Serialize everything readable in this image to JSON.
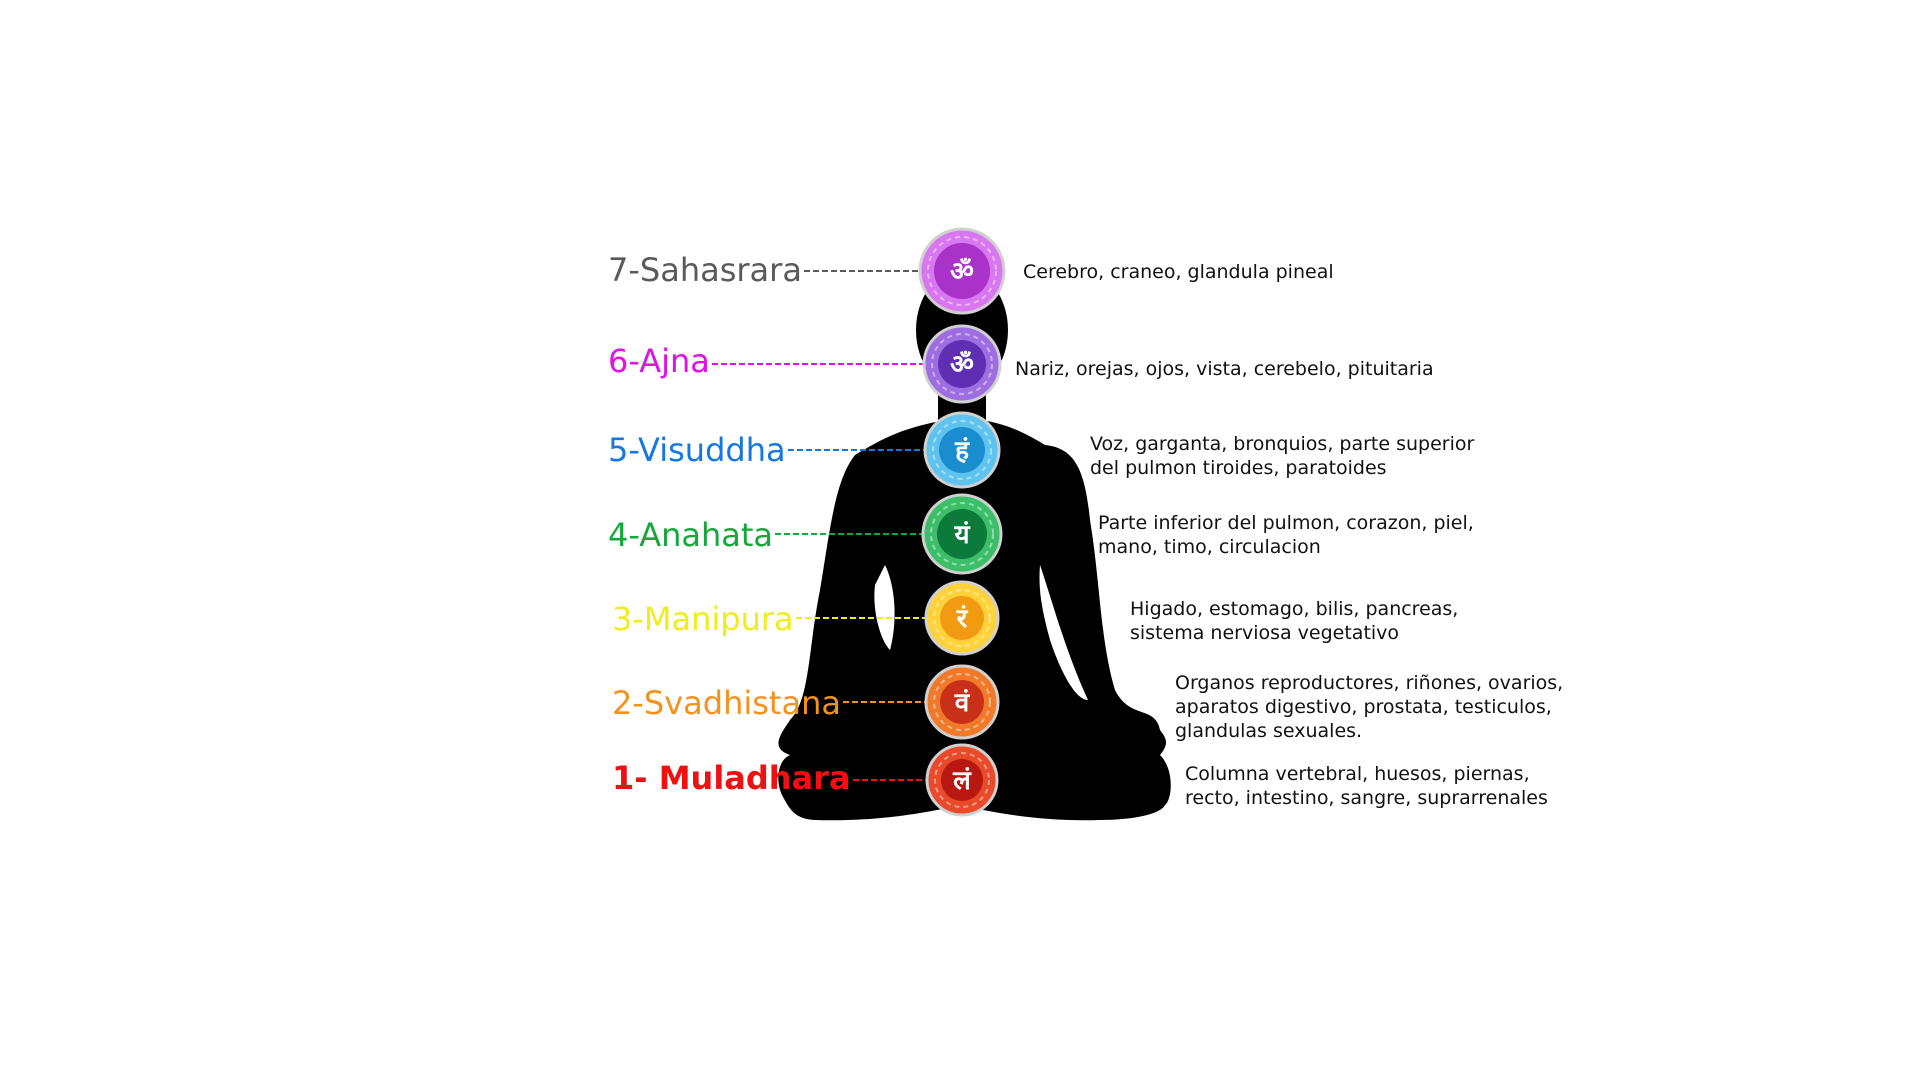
{
  "chakras": [
    {
      "label": "7-Sahasrara",
      "color": "#5a5a5a",
      "bold": false,
      "symbol": "ॐ",
      "symbol_name": "om-icon",
      "fill_outer": "#d977f0",
      "fill_inner": "#a933c9",
      "description": [
        "Cerebro, craneo, glandula pineal"
      ]
    },
    {
      "label": "6-Ajna",
      "color": "#e010e8",
      "bold": false,
      "symbol": "ॐ",
      "symbol_name": "om-icon",
      "fill_outer": "#9d6ee2",
      "fill_inner": "#5f2fb3",
      "description": [
        "Nariz, orejas, ojos, vista, cerebelo, pituitaria"
      ]
    },
    {
      "label": "5-Visuddha",
      "color": "#1577e2",
      "bold": false,
      "symbol": "हं",
      "symbol_name": "ham-icon",
      "fill_outer": "#5fc3f0",
      "fill_inner": "#1a8dcf",
      "description": [
        "Voz, garganta, bronquios, parte superior",
        "del pulmon tiroides, paratoides"
      ]
    },
    {
      "label": "4-Anahata",
      "color": "#13a83a",
      "bold": false,
      "symbol": "यं",
      "symbol_name": "yam-icon",
      "fill_outer": "#3dbf6a",
      "fill_inner": "#0c7a3a",
      "description": [
        "Parte inferior del pulmon, corazon, piel,",
        "mano, timo, circulacion"
      ]
    },
    {
      "label": "3-Manipura",
      "color": "#f0ec1e",
      "bold": false,
      "symbol": "रं",
      "symbol_name": "ram-icon",
      "fill_outer": "#ffd23a",
      "fill_inner": "#f29a12",
      "description": [
        "Higado, estomago, bilis, pancreas,",
        "sistema nerviosa vegetativo"
      ]
    },
    {
      "label": "2-Svadhistana",
      "color": "#f5921c",
      "bold": false,
      "symbol": "वं",
      "symbol_name": "vam-icon",
      "fill_outer": "#f07a2a",
      "fill_inner": "#c9301a",
      "description": [
        "Organos reproductores, riñones, ovarios,",
        "aparatos digestivo, prostata, testiculos,",
        "glandulas sexuales."
      ]
    },
    {
      "label": "1- Muladhara",
      "color": "#ee1111",
      "bold": true,
      "symbol": "लं",
      "symbol_name": "lam-icon",
      "fill_outer": "#e84a2a",
      "fill_inner": "#b8180f",
      "description": [
        "Columna vertebral, huesos, piernas,",
        "recto, intestino, sangre, suprarrenales"
      ]
    }
  ]
}
